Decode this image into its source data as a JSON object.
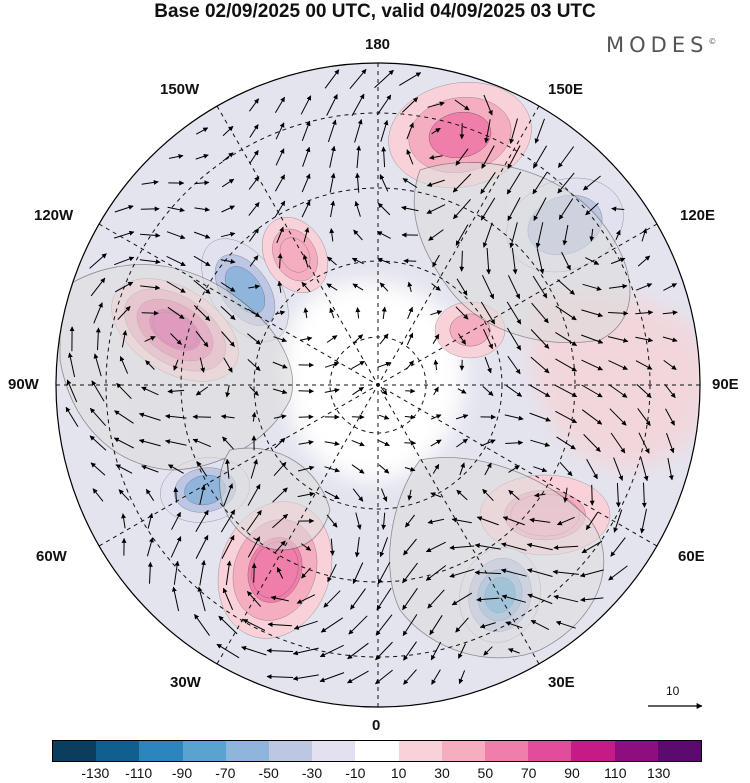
{
  "title": "Base 02/09/2025 00 UTC, valid 04/09/2025 03 UTC",
  "brand": "MODES",
  "brand_mark": "©",
  "longitude_labels": {
    "top": "180",
    "bottom": "0",
    "left": "90W",
    "right": "90E",
    "upper_left_outer": "150W",
    "upper_left_inner": "120W",
    "upper_right_outer": "150E",
    "upper_right_inner": "120E",
    "lower_left_inner": "60W",
    "lower_left_outer": "30W",
    "lower_right_inner": "60E",
    "lower_right_outer": "30E"
  },
  "reference_vector": {
    "label": "10",
    "arrow_icon": "right-arrow-icon"
  },
  "colorbar": {
    "colors": [
      "#0b3d5e",
      "#10608f",
      "#2d85bd",
      "#5aa3d1",
      "#8fb5dc",
      "#bdc6e3",
      "#e1e1ef",
      "#ffffff",
      "#f9d2d9",
      "#f5aec0",
      "#f07eaa",
      "#e24c9b",
      "#c41b87",
      "#8e0d7f",
      "#5b0a70"
    ],
    "tick_labels": [
      "-130",
      "-110",
      "-90",
      "-70",
      "-50",
      "-30",
      "-10",
      "10",
      "30",
      "50",
      "70",
      "90",
      "110",
      "130"
    ]
  },
  "map_features": [
    {
      "name": "anomaly-positive-gulf-of-alaska",
      "value": 60
    },
    {
      "name": "anomaly-positive-central-canada",
      "value": 85
    },
    {
      "name": "anomaly-negative-hudson-region",
      "value": -55
    },
    {
      "name": "anomaly-positive-east-siberian-sea",
      "value": 55
    },
    {
      "name": "anomaly-negative-siberia",
      "value": -35
    },
    {
      "name": "anomaly-negative-labrador",
      "value": -55
    },
    {
      "name": "anomaly-positive-north-atlantic",
      "value": 65
    },
    {
      "name": "anomaly-positive-barents-sea",
      "value": 45
    },
    {
      "name": "anomaly-negative-eastern-europe",
      "value": -75
    },
    {
      "name": "anomaly-positive-ural",
      "value": 40
    }
  ]
}
